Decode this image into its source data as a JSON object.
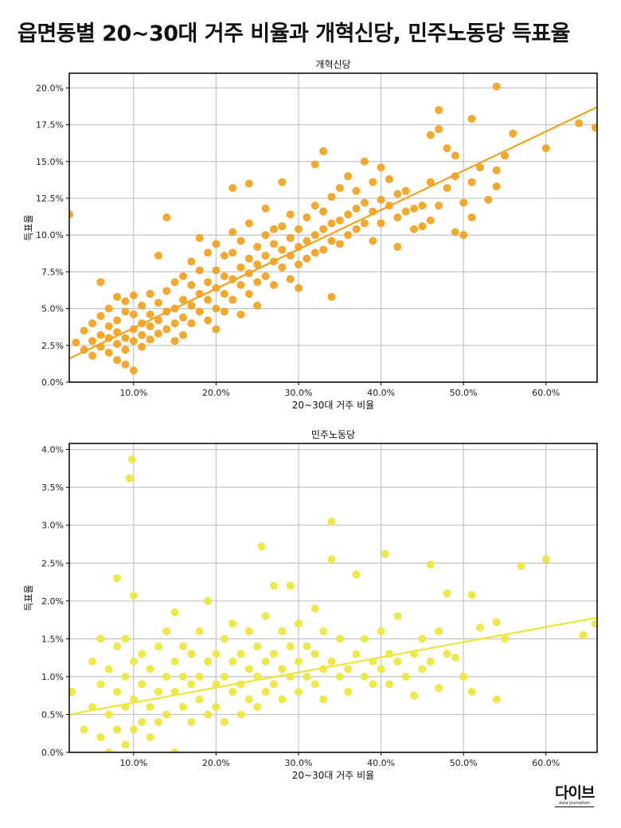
{
  "title": "읍면동별 20~30대 거주 비율과 개혁신당, 민주노동당 득표율",
  "logo": {
    "text": "다이브",
    "subtitle": "data journalism"
  },
  "chart_data": [
    {
      "type": "scatter",
      "title": "개혁신당",
      "xlabel": "20~30대 거주 비율",
      "ylabel": "득표율",
      "color": "#F4A11C",
      "xlim": [
        2.2,
        66.2
      ],
      "ylim": [
        0,
        21.0
      ],
      "xticks": [
        10,
        20,
        30,
        40,
        50,
        60
      ],
      "xtick_labels": [
        "10.0%",
        "20.0%",
        "30.0%",
        "40.0%",
        "50.0%",
        "60.0%"
      ],
      "yticks": [
        0,
        2.5,
        5,
        7.5,
        10,
        12.5,
        15,
        17.5,
        20
      ],
      "ytick_labels": [
        "0.0%",
        "2.5%",
        "5.0%",
        "7.5%",
        "10.0%",
        "12.5%",
        "15.0%",
        "17.5%",
        "20.0%"
      ],
      "grid": true,
      "regression": {
        "x": [
          2.2,
          66.2
        ],
        "y": [
          1.6,
          18.7
        ]
      },
      "points": [
        [
          3,
          2.7
        ],
        [
          4,
          2.2
        ],
        [
          4,
          3.5
        ],
        [
          5,
          2.8
        ],
        [
          5,
          4.0
        ],
        [
          5,
          1.8
        ],
        [
          6,
          3.2
        ],
        [
          6,
          4.5
        ],
        [
          6,
          2.4
        ],
        [
          6,
          6.8
        ],
        [
          7,
          3.8
        ],
        [
          7,
          2.0
        ],
        [
          7,
          5.0
        ],
        [
          7,
          3.0
        ],
        [
          8,
          4.2
        ],
        [
          8,
          2.6
        ],
        [
          8,
          5.8
        ],
        [
          8,
          1.5
        ],
        [
          8,
          3.4
        ],
        [
          9,
          3.0
        ],
        [
          9,
          4.8
        ],
        [
          9,
          2.2
        ],
        [
          9,
          5.5
        ],
        [
          9,
          1.2
        ],
        [
          10,
          3.6
        ],
        [
          10,
          2.8
        ],
        [
          10,
          4.6
        ],
        [
          10,
          0.8
        ],
        [
          10,
          5.9
        ],
        [
          11,
          3.2
        ],
        [
          11,
          4.0
        ],
        [
          11,
          2.4
        ],
        [
          11,
          5.2
        ],
        [
          12,
          3.8
        ],
        [
          12,
          4.6
        ],
        [
          12,
          2.9
        ],
        [
          12,
          6.0
        ],
        [
          13,
          4.2
        ],
        [
          13,
          3.3
        ],
        [
          13,
          5.4
        ],
        [
          13,
          8.6
        ],
        [
          14,
          4.8
        ],
        [
          14,
          3.6
        ],
        [
          14,
          6.2
        ],
        [
          14,
          11.2
        ],
        [
          15,
          5.0
        ],
        [
          15,
          4.0
        ],
        [
          15,
          6.8
        ],
        [
          15,
          2.8
        ],
        [
          16,
          5.6
        ],
        [
          16,
          4.4
        ],
        [
          16,
          7.2
        ],
        [
          16,
          3.2
        ],
        [
          17,
          5.2
        ],
        [
          17,
          6.6
        ],
        [
          17,
          4.0
        ],
        [
          17,
          8.2
        ],
        [
          18,
          6.0
        ],
        [
          18,
          4.8
        ],
        [
          18,
          7.6
        ],
        [
          18,
          9.8
        ],
        [
          19,
          5.6
        ],
        [
          19,
          6.8
        ],
        [
          19,
          4.2
        ],
        [
          19,
          8.8
        ],
        [
          20,
          6.4
        ],
        [
          20,
          5.0
        ],
        [
          20,
          7.6
        ],
        [
          20,
          9.4
        ],
        [
          20,
          3.6
        ],
        [
          21,
          6.0
        ],
        [
          21,
          7.2
        ],
        [
          21,
          8.6
        ],
        [
          21,
          4.8
        ],
        [
          22,
          7.0
        ],
        [
          22,
          5.6
        ],
        [
          22,
          8.8
        ],
        [
          22,
          13.2
        ],
        [
          22,
          10.2
        ],
        [
          23,
          6.6
        ],
        [
          23,
          7.8
        ],
        [
          23,
          9.6
        ],
        [
          23,
          4.6
        ],
        [
          24,
          7.4
        ],
        [
          24,
          8.4
        ],
        [
          24,
          6.0
        ],
        [
          24,
          10.8
        ],
        [
          24,
          13.5
        ],
        [
          25,
          8.0
        ],
        [
          25,
          6.8
        ],
        [
          25,
          9.2
        ],
        [
          25,
          5.2
        ],
        [
          26,
          8.6
        ],
        [
          26,
          7.2
        ],
        [
          26,
          10.0
        ],
        [
          26,
          11.8
        ],
        [
          27,
          8.2
        ],
        [
          27,
          9.4
        ],
        [
          27,
          6.6
        ],
        [
          27,
          10.4
        ],
        [
          28,
          9.0
        ],
        [
          28,
          7.8
        ],
        [
          28,
          10.6
        ],
        [
          28,
          13.6
        ],
        [
          29,
          8.6
        ],
        [
          29,
          9.8
        ],
        [
          29,
          7.0
        ],
        [
          29,
          11.4
        ],
        [
          30,
          9.2
        ],
        [
          30,
          8.0
        ],
        [
          30,
          10.4
        ],
        [
          30,
          6.4
        ],
        [
          31,
          9.6
        ],
        [
          31,
          11.2
        ],
        [
          31,
          8.4
        ],
        [
          32,
          10.0
        ],
        [
          32,
          8.8
        ],
        [
          32,
          12.0
        ],
        [
          32,
          14.8
        ],
        [
          33,
          10.4
        ],
        [
          33,
          9.0
        ],
        [
          33,
          11.6
        ],
        [
          33,
          15.7
        ],
        [
          34,
          10.8
        ],
        [
          34,
          9.6
        ],
        [
          34,
          12.6
        ],
        [
          34,
          5.8
        ],
        [
          35,
          11.0
        ],
        [
          35,
          9.4
        ],
        [
          35,
          13.2
        ],
        [
          36,
          11.4
        ],
        [
          36,
          10.0
        ],
        [
          36,
          14.0
        ],
        [
          37,
          11.8
        ],
        [
          37,
          10.4
        ],
        [
          37,
          13.0
        ],
        [
          38,
          12.2
        ],
        [
          38,
          10.8
        ],
        [
          38,
          15.0
        ],
        [
          39,
          11.6
        ],
        [
          39,
          13.6
        ],
        [
          39,
          9.6
        ],
        [
          40,
          12.4
        ],
        [
          40,
          10.8
        ],
        [
          40,
          14.6
        ],
        [
          41,
          12.0
        ],
        [
          41,
          13.8
        ],
        [
          42,
          11.2
        ],
        [
          42,
          12.8
        ],
        [
          42,
          9.2
        ],
        [
          43,
          11.6
        ],
        [
          43,
          13.0
        ],
        [
          44,
          10.4
        ],
        [
          44,
          11.8
        ],
        [
          45,
          12.0
        ],
        [
          45,
          10.6
        ],
        [
          46,
          11.0
        ],
        [
          46,
          13.6
        ],
        [
          46,
          16.8
        ],
        [
          47,
          17.2
        ],
        [
          47,
          18.5
        ],
        [
          47,
          12.0
        ],
        [
          48,
          15.9
        ],
        [
          48,
          13.2
        ],
        [
          49,
          15.4
        ],
        [
          49,
          10.2
        ],
        [
          50,
          12.2
        ],
        [
          50,
          10.0
        ],
        [
          51,
          13.6
        ],
        [
          51,
          11.2
        ],
        [
          51,
          17.9
        ],
        [
          52,
          14.6
        ],
        [
          53,
          12.4
        ],
        [
          54,
          14.4
        ],
        [
          54,
          13.3
        ],
        [
          54,
          20.1
        ],
        [
          55,
          15.4
        ],
        [
          56,
          16.9
        ],
        [
          60,
          15.9
        ],
        [
          64,
          17.6
        ],
        [
          66,
          17.3
        ],
        [
          2.2,
          11.4
        ],
        [
          49,
          14.0
        ]
      ]
    },
    {
      "type": "scatter",
      "title": "민주노동당",
      "xlabel": "20~30대 거주 비율",
      "ylabel": "득표율",
      "color": "#EDE63A",
      "xlim": [
        2.2,
        66.2
      ],
      "ylim": [
        0,
        4.08
      ],
      "xticks": [
        10,
        20,
        30,
        40,
        50,
        60
      ],
      "xtick_labels": [
        "10.0%",
        "20.0%",
        "30.0%",
        "40.0%",
        "50.0%",
        "60.0%"
      ],
      "yticks": [
        0,
        0.5,
        1,
        1.5,
        2,
        2.5,
        3,
        3.5,
        4
      ],
      "ytick_labels": [
        "0.0%",
        "0.5%",
        "1.0%",
        "1.5%",
        "2.0%",
        "2.5%",
        "3.0%",
        "3.5%",
        "4.0%"
      ],
      "grid": true,
      "regression": {
        "x": [
          2.2,
          66.2
        ],
        "y": [
          0.5,
          1.78
        ]
      },
      "points": [
        [
          2.5,
          0.8
        ],
        [
          4,
          0.3
        ],
        [
          5,
          1.2
        ],
        [
          5,
          0.6
        ],
        [
          6,
          0.9
        ],
        [
          6,
          0.2
        ],
        [
          6,
          1.5
        ],
        [
          7,
          0.5
        ],
        [
          7,
          1.1
        ],
        [
          7,
          0.0
        ],
        [
          8,
          0.8
        ],
        [
          8,
          1.4
        ],
        [
          8,
          0.3
        ],
        [
          8,
          2.3
        ],
        [
          9,
          0.6
        ],
        [
          9,
          1.0
        ],
        [
          9,
          0.1
        ],
        [
          9,
          1.5
        ],
        [
          9.5,
          3.62
        ],
        [
          9.8,
          3.87
        ],
        [
          10,
          0.7
        ],
        [
          10,
          1.2
        ],
        [
          10,
          2.07
        ],
        [
          10,
          0.3
        ],
        [
          11,
          0.9
        ],
        [
          11,
          0.4
        ],
        [
          11,
          1.3
        ],
        [
          12,
          0.6
        ],
        [
          12,
          1.1
        ],
        [
          12,
          0.2
        ],
        [
          13,
          0.8
        ],
        [
          13,
          1.4
        ],
        [
          13,
          0.4
        ],
        [
          14,
          1.0
        ],
        [
          14,
          0.5
        ],
        [
          14,
          1.6
        ],
        [
          15,
          0.8
        ],
        [
          15,
          1.2
        ],
        [
          15,
          0.0
        ],
        [
          15,
          1.85
        ],
        [
          16,
          0.6
        ],
        [
          16,
          1.0
        ],
        [
          16,
          1.4
        ],
        [
          17,
          0.9
        ],
        [
          17,
          1.3
        ],
        [
          17,
          0.4
        ],
        [
          18,
          1.0
        ],
        [
          18,
          0.7
        ],
        [
          18,
          1.6
        ],
        [
          19,
          1.2
        ],
        [
          19,
          0.5
        ],
        [
          19,
          2.0
        ],
        [
          20,
          0.9
        ],
        [
          20,
          1.3
        ],
        [
          20,
          0.6
        ],
        [
          21,
          1.0
        ],
        [
          21,
          1.5
        ],
        [
          21,
          0.4
        ],
        [
          22,
          1.2
        ],
        [
          22,
          0.8
        ],
        [
          22,
          1.7
        ],
        [
          23,
          0.9
        ],
        [
          23,
          1.3
        ],
        [
          23,
          0.5
        ],
        [
          24,
          1.1
        ],
        [
          24,
          1.6
        ],
        [
          24,
          0.7
        ],
        [
          25,
          1.0
        ],
        [
          25,
          1.4
        ],
        [
          25,
          0.6
        ],
        [
          25.5,
          2.72
        ],
        [
          26,
          1.2
        ],
        [
          26,
          0.8
        ],
        [
          26,
          1.8
        ],
        [
          27,
          0.9
        ],
        [
          27,
          1.3
        ],
        [
          27,
          2.2
        ],
        [
          28,
          1.1
        ],
        [
          28,
          0.7
        ],
        [
          28,
          1.6
        ],
        [
          29,
          1.0
        ],
        [
          29,
          1.4
        ],
        [
          29,
          2.2
        ],
        [
          30,
          1.2
        ],
        [
          30,
          0.8
        ],
        [
          30,
          1.7
        ],
        [
          31,
          1.0
        ],
        [
          31,
          1.4
        ],
        [
          32,
          0.9
        ],
        [
          32,
          1.3
        ],
        [
          32,
          1.9
        ],
        [
          33,
          1.1
        ],
        [
          33,
          0.7
        ],
        [
          33,
          1.6
        ],
        [
          34,
          1.2
        ],
        [
          34,
          3.05
        ],
        [
          34,
          2.55
        ],
        [
          35,
          1.0
        ],
        [
          35,
          1.5
        ],
        [
          36,
          1.1
        ],
        [
          36,
          0.8
        ],
        [
          37,
          1.3
        ],
        [
          37,
          2.35
        ],
        [
          38,
          1.0
        ],
        [
          38,
          1.5
        ],
        [
          39,
          1.2
        ],
        [
          39,
          0.9
        ],
        [
          40,
          1.1
        ],
        [
          40,
          1.6
        ],
        [
          40.5,
          2.62
        ],
        [
          41,
          1.3
        ],
        [
          41,
          0.9
        ],
        [
          42,
          1.2
        ],
        [
          42,
          1.8
        ],
        [
          43,
          1.0
        ],
        [
          44,
          1.3
        ],
        [
          44,
          0.75
        ],
        [
          45,
          1.1
        ],
        [
          45,
          1.5
        ],
        [
          46,
          2.48
        ],
        [
          46,
          1.2
        ],
        [
          47,
          0.85
        ],
        [
          47,
          1.6
        ],
        [
          48,
          1.3
        ],
        [
          48,
          2.1
        ],
        [
          49,
          1.25
        ],
        [
          50,
          1.0
        ],
        [
          51,
          2.08
        ],
        [
          51,
          0.8
        ],
        [
          52,
          1.65
        ],
        [
          54,
          1.72
        ],
        [
          54,
          0.7
        ],
        [
          55,
          1.5
        ],
        [
          57,
          2.46
        ],
        [
          60,
          2.55
        ],
        [
          64.5,
          1.55
        ],
        [
          66,
          1.7
        ]
      ]
    }
  ]
}
